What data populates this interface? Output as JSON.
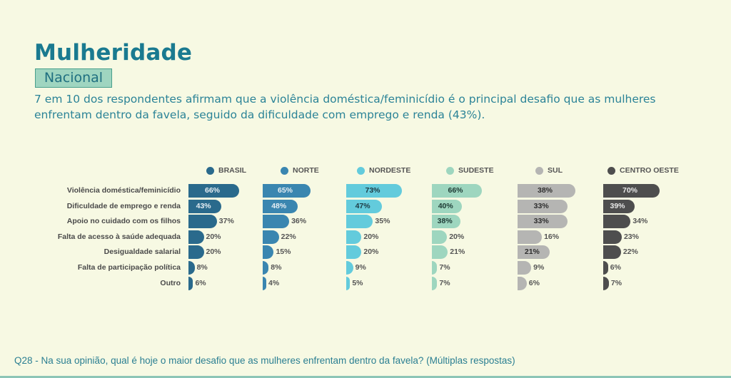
{
  "header": {
    "title": "Mulheridade",
    "badge": "Nacional",
    "subtitle": "7 em 10 dos respondentes afirmam que a violência doméstica/feminicídio é o principal desafio que as mulheres enfrentam dentro da favela, seguido da dificuldade com emprego e renda (43%)."
  },
  "footer": {
    "question": "Q28 - Na sua opinião, qual é hoje o maior desafio que as mulheres enfrentam dentro da favela? (Múltiplas respostas)"
  },
  "colors": {
    "title": "#1a7a90",
    "badge_bg": "#9fd5c0"
  },
  "chart_data": {
    "type": "bar",
    "orientation": "horizontal",
    "title": "",
    "xlabel": "",
    "ylabel": "",
    "unit": "%",
    "legend_position": "top",
    "grid": false,
    "categories": [
      "Violência doméstica/feminicídio",
      "Dificuldade de emprego e renda",
      "Apoio no cuidado com os filhos",
      "Falta de acesso à saúde adequada",
      "Desigualdade salarial",
      "Falta de participação política",
      "Outro"
    ],
    "series": [
      {
        "name": "BRASIL",
        "color": "#2a6a8c",
        "label_inside_color": "#e6eef3",
        "values": [
          66,
          43,
          37,
          20,
          20,
          8,
          6
        ]
      },
      {
        "name": "NORTE",
        "color": "#3a86b0",
        "label_inside_color": "#e6eef3",
        "values": [
          65,
          48,
          36,
          22,
          15,
          8,
          4
        ]
      },
      {
        "name": "NORDESTE",
        "color": "#63cbdc",
        "label_inside_color": "#1d3a44",
        "values": [
          73,
          47,
          35,
          20,
          20,
          9,
          5
        ]
      },
      {
        "name": "SUDESTE",
        "color": "#9ed6bf",
        "label_inside_color": "#1d3a34",
        "values": [
          66,
          40,
          38,
          20,
          21,
          7,
          7
        ]
      },
      {
        "name": "SUL",
        "color": "#b5b5b3",
        "label_inside_color": "#2e2e2e",
        "values": [
          38,
          33,
          33,
          16,
          21,
          9,
          6
        ]
      },
      {
        "name": "CENTRO OESTE",
        "color": "#4e4e4e",
        "label_inside_color": "#e8e8e8",
        "values": [
          70,
          39,
          34,
          23,
          22,
          6,
          7
        ]
      }
    ]
  }
}
